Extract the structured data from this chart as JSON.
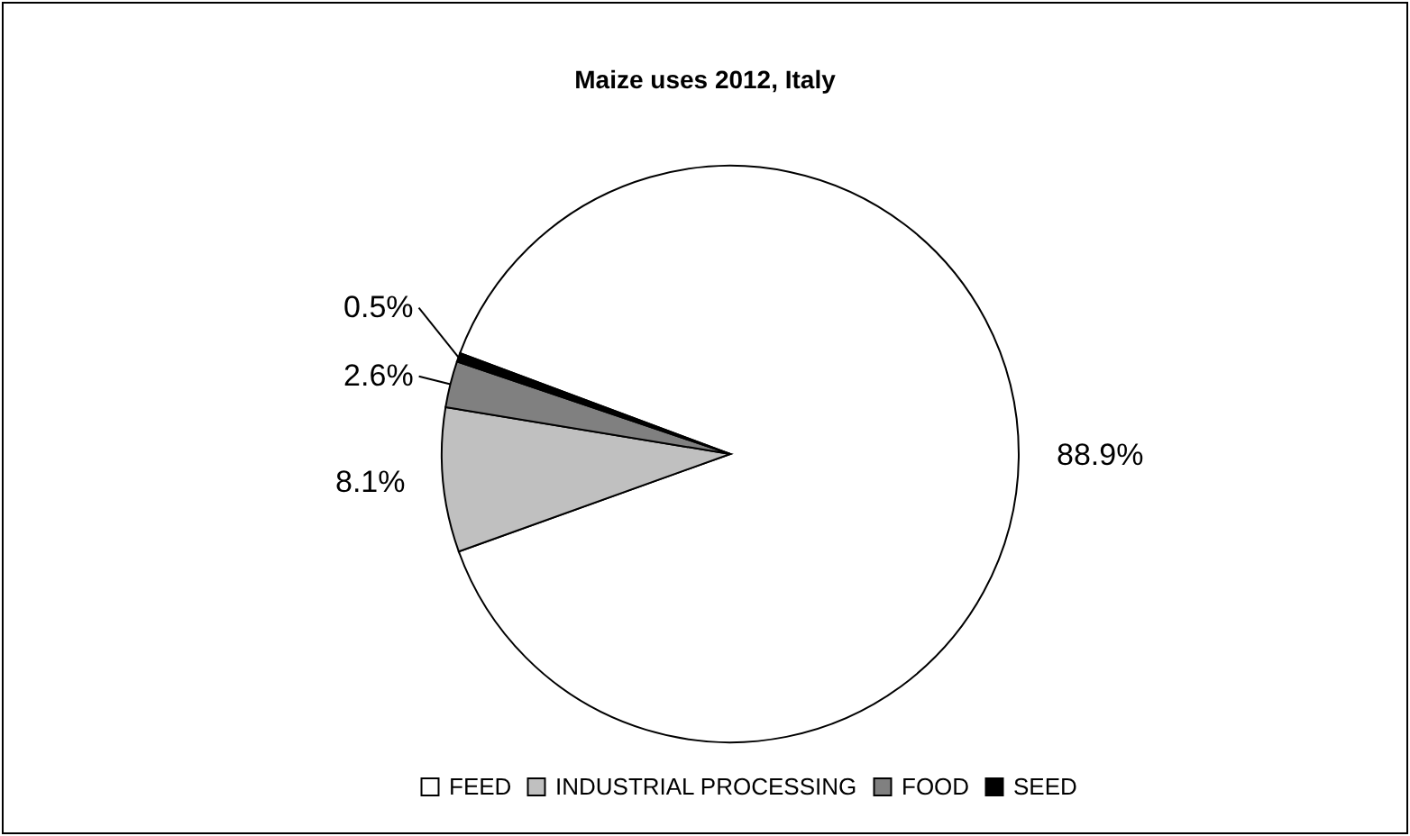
{
  "chart_data": {
    "type": "pie",
    "title": "Maize uses 2012, Italy",
    "categories": [
      "FEED",
      "INDUSTRIAL PROCESSING",
      "FOOD",
      "SEED"
    ],
    "values": [
      88.9,
      8.1,
      2.6,
      0.5
    ],
    "colors": [
      "#ffffff",
      "#c0c0c0",
      "#808080",
      "#000000"
    ],
    "value_labels": [
      "88.9%",
      "8.1%",
      "2.6%",
      "0.5%"
    ],
    "legend": "bottom"
  }
}
